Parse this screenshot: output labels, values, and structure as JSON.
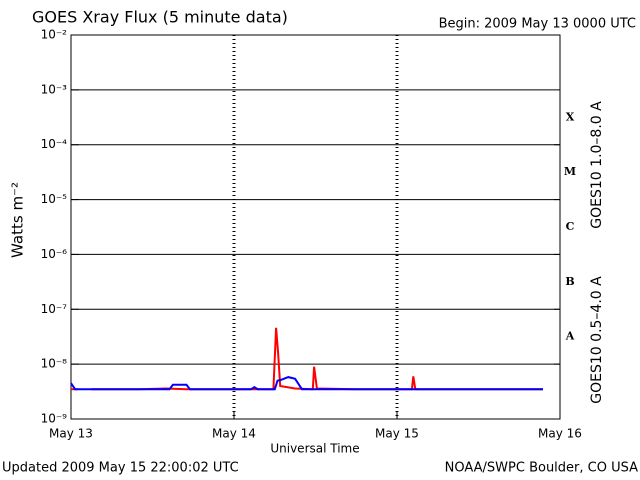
{
  "chart_data": {
    "type": "line",
    "title": "GOES Xray Flux (5 minute data)",
    "subtitle": "Begin:  2009 May 13 0000 UTC",
    "x_label": "Universal Time",
    "y_label": "Watts m⁻²",
    "footer_left": "Updated 2009 May 15 22:00:02 UTC",
    "footer_right": "NOAA/SWPC Boulder, CO USA",
    "ylog": true,
    "grid": true,
    "xlim": [
      0,
      72
    ],
    "ylim": [
      1e-09,
      0.01
    ],
    "xticks": [
      {
        "value": 0,
        "label": "May 13"
      },
      {
        "value": 24,
        "label": "May 14"
      },
      {
        "value": 48,
        "label": "May 15"
      },
      {
        "value": 72,
        "label": "May 16"
      }
    ],
    "yticks": [
      {
        "value": 1e-09,
        "label": "10⁻⁹"
      },
      {
        "value": 1e-08,
        "label": "10⁻⁸"
      },
      {
        "value": 1e-07,
        "label": "10⁻⁷"
      },
      {
        "value": 1e-06,
        "label": "10⁻⁶"
      },
      {
        "value": 1e-05,
        "label": "10⁻⁵"
      },
      {
        "value": 0.0001,
        "label": "10⁻⁴"
      },
      {
        "value": 0.001,
        "label": "10⁻³"
      },
      {
        "value": 0.01,
        "label": "10⁻²"
      }
    ],
    "flare_classes": [
      {
        "label": "A",
        "value": 1e-08
      },
      {
        "label": "B",
        "value": 1e-07
      },
      {
        "label": "C",
        "value": 1e-06
      },
      {
        "label": "M",
        "value": 1e-05
      },
      {
        "label": "X",
        "value": 0.0001
      }
    ],
    "series": [
      {
        "name": "GOES10 1.0–8.0 A",
        "color": "#ff0000",
        "x": [
          0,
          1,
          2,
          3,
          4,
          10,
          14,
          17,
          24,
          26,
          29.8,
          30.2,
          30.5,
          30.8,
          33,
          35.6,
          35.8,
          36.2,
          42,
          50.2,
          50.4,
          50.7,
          60,
          69.5
        ],
        "values": [
          3.5e-09,
          3.5e-09,
          null,
          3.5e-09,
          3.5e-09,
          3.5e-09,
          3.6e-09,
          3.5e-09,
          3.5e-09,
          3.5e-09,
          3.5e-09,
          4.6e-08,
          1.6e-08,
          4e-09,
          3.6e-09,
          3.5e-09,
          9e-09,
          3.6e-09,
          3.5e-09,
          3.5e-09,
          6e-09,
          3.5e-09,
          3.5e-09,
          3.5e-09
        ]
      },
      {
        "name": "GOES10 0.5–4.0 A",
        "color": "#0000ff",
        "x": [
          0,
          0.6,
          14.5,
          15,
          17,
          17.5,
          26.5,
          27,
          27.5,
          30,
          30.4,
          31,
          32,
          33,
          34,
          69.5
        ],
        "values": [
          4.5e-09,
          3.5e-09,
          3.5e-09,
          4.2e-09,
          4.2e-09,
          3.5e-09,
          3.5e-09,
          3.8e-09,
          3.5e-09,
          3.5e-09,
          5e-09,
          5.2e-09,
          5.8e-09,
          5.4e-09,
          3.5e-09,
          3.5e-09
        ]
      }
    ]
  }
}
